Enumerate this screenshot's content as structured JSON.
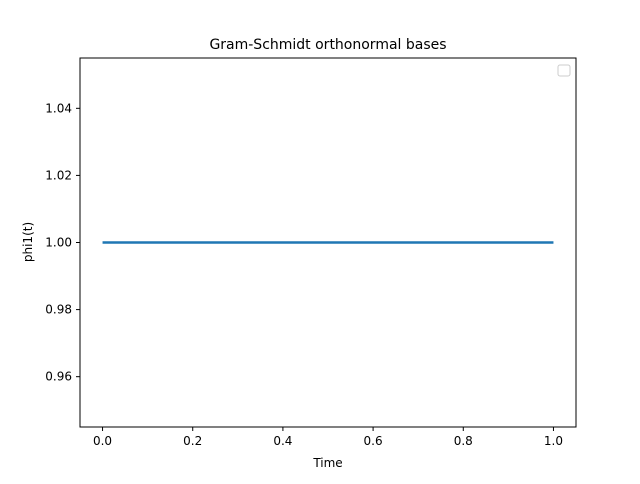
{
  "chart_data": {
    "type": "line",
    "title": "Gram-Schmidt orthonormal bases",
    "xlabel": "Time",
    "ylabel": "phi1(t)",
    "xlim": [
      -0.05,
      1.05
    ],
    "ylim": [
      0.945,
      1.055
    ],
    "xticks": [
      0.0,
      0.2,
      0.4,
      0.6,
      0.8,
      1.0
    ],
    "xtick_labels": [
      "0.0",
      "0.2",
      "0.4",
      "0.6",
      "0.8",
      "1.0"
    ],
    "yticks": [
      0.96,
      0.98,
      1.0,
      1.02,
      1.04
    ],
    "ytick_labels": [
      "0.96",
      "0.98",
      "1.00",
      "1.02",
      "1.04"
    ],
    "grid": false,
    "legend": {
      "location": "upper right",
      "entries": []
    },
    "series": [
      {
        "name": "phi1",
        "color": "#1f77b4",
        "x": [
          0.0,
          1.0
        ],
        "y": [
          1.0,
          1.0
        ]
      }
    ]
  }
}
